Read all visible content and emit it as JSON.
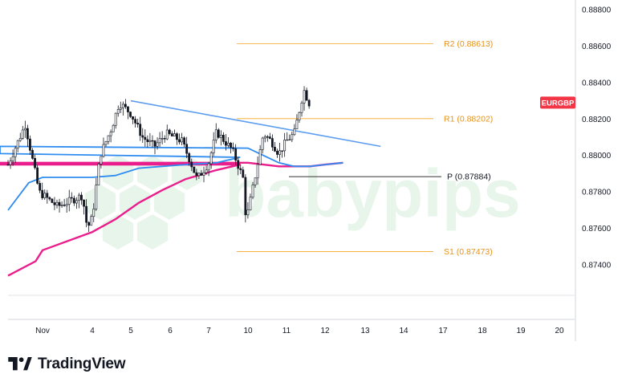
{
  "brand": {
    "name": "TradingView",
    "icon": "tradingview-logo"
  },
  "watermark": "babypips",
  "chart_data": {
    "type": "candlestick",
    "symbol": "EURGBP",
    "ylim": [
      0.8728,
      0.889
    ],
    "y_ticks": [
      "0.88800",
      "0.88600",
      "0.88400",
      "0.88200",
      "0.88000",
      "0.87800",
      "0.87600",
      "0.87400"
    ],
    "x_ticks": [
      "Nov",
      "4",
      "5",
      "6",
      "7",
      "10",
      "11",
      "12",
      "13",
      "14",
      "17",
      "18",
      "19",
      "20"
    ],
    "levels": [
      {
        "name": "R2",
        "label": "R2 (0.88613)",
        "value": 0.88613,
        "color": "#f5a623"
      },
      {
        "name": "R1",
        "label": "R1 (0.88202)",
        "value": 0.88202,
        "color": "#f5a623"
      },
      {
        "name": "P",
        "label": "P (0.87884)",
        "value": 0.87884,
        "color": "#333333"
      },
      {
        "name": "S1",
        "label": "S1 (0.87473)",
        "value": 0.87473,
        "color": "#f5a623"
      }
    ],
    "trendline": {
      "start": [
        "5",
        0.883
      ],
      "end": [
        "13.4",
        0.8805
      ],
      "color": "#5b9cf0"
    },
    "ma_fast": {
      "color": "#2f8cf0",
      "points": [
        [
          "Oct31.0",
          0.877
        ],
        [
          "Oct31.6",
          0.8785
        ],
        [
          "Nov1.0",
          0.8788
        ],
        [
          "4.0",
          0.8788
        ],
        [
          "4.6",
          0.8789
        ],
        [
          "5.2",
          0.8793
        ],
        [
          "5.8",
          0.8794
        ],
        [
          "6.4",
          0.8795
        ],
        [
          "7.2",
          0.8796
        ],
        [
          "7.8",
          0.8799
        ],
        [
          "8.6",
          0.8801
        ],
        [
          "9.4",
          0.8805
        ],
        [
          "10.0",
          0.8804
        ],
        [
          "10.4",
          0.88
        ],
        [
          "10.8",
          0.8796
        ],
        [
          "11.2",
          0.8794
        ],
        [
          "11.6",
          0.8794
        ],
        [
          "12.0",
          0.8795
        ],
        [
          "12.45",
          0.8796
        ]
      ]
    },
    "ma_slow": {
      "color": "#e91e8c",
      "points": [
        [
          "Oct31.0",
          0.8734
        ],
        [
          "Oct31.8",
          0.8742
        ],
        [
          "Nov1.0",
          0.8748
        ],
        [
          "4.0",
          0.8758
        ],
        [
          "4.6",
          0.8765
        ],
        [
          "5.2",
          0.8774
        ],
        [
          "5.8",
          0.8781
        ],
        [
          "6.4",
          0.8787
        ],
        [
          "7.2",
          0.8792
        ],
        [
          "7.8",
          0.8795
        ],
        [
          "8.6",
          0.8795
        ],
        [
          "9.4",
          0.8796
        ],
        [
          "10.0",
          0.8796
        ],
        [
          "10.4",
          0.8795
        ],
        [
          "10.8",
          0.8794
        ],
        [
          "11.2",
          0.8794
        ],
        [
          "11.6",
          0.8794
        ],
        [
          "12.0",
          0.8795
        ],
        [
          "12.45",
          0.8796
        ]
      ]
    },
    "price_path": [
      [
        "Oct31.0",
        0.8795
      ],
      [
        "Oct31.5",
        0.8817
      ],
      [
        "Oct31.9",
        0.878
      ],
      [
        "Nov1.3",
        0.8772
      ],
      [
        "Nov1.8",
        0.8778
      ],
      [
        "Nov1.9",
        0.876
      ],
      [
        "4.0",
        0.8766
      ],
      [
        "4.2",
        0.88
      ],
      [
        "4.5",
        0.8815
      ],
      [
        "4.7",
        0.8829
      ],
      [
        "5.0",
        0.8823
      ],
      [
        "5.3",
        0.881
      ],
      [
        "5.6",
        0.8805
      ],
      [
        "5.9",
        0.8812
      ],
      [
        "6.3",
        0.8808
      ],
      [
        "6.5",
        0.8798
      ],
      [
        "6.7",
        0.8787
      ],
      [
        "7.0",
        0.8796
      ],
      [
        "7.2",
        0.8813
      ],
      [
        "7.6",
        0.8803
      ],
      [
        "7.9",
        0.8786
      ],
      [
        "8.2",
        0.8783
      ],
      [
        "8.6",
        0.8791
      ],
      [
        "8.9",
        0.879
      ],
      [
        "9.2",
        0.8772
      ],
      [
        "9.6",
        0.8771
      ],
      [
        "10.0",
        0.8769
      ],
      [
        "10.2",
        0.879
      ],
      [
        "10.4",
        0.8812
      ],
      [
        "10.6",
        0.8808
      ],
      [
        "10.8",
        0.8801
      ],
      [
        "11.0",
        0.8808
      ],
      [
        "11.2",
        0.8812
      ],
      [
        "11.45",
        0.8836
      ],
      [
        "11.6",
        0.8828
      ]
    ],
    "latest": {
      "label": "EURGBP",
      "value": 0.8829,
      "color": "#f23645"
    }
  }
}
